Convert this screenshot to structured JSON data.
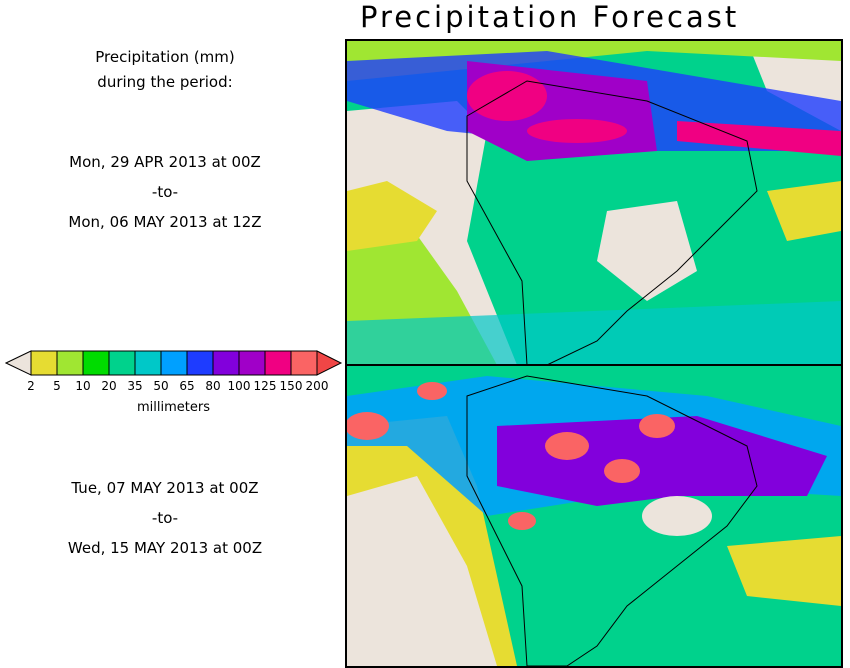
{
  "title": "Precipitation Forecast",
  "caption": {
    "line1": "Precipitation (mm)",
    "line2": "during the period:"
  },
  "period1": {
    "start": "Mon, 29 APR 2013 at 00Z",
    "sep": "-to-",
    "end": "Mon, 06 MAY 2013 at 12Z"
  },
  "period2": {
    "start": "Tue, 07 MAY 2013 at 00Z",
    "sep": "-to-",
    "end": "Wed, 15 MAY 2013 at 00Z"
  },
  "legend": {
    "units": "millimeters",
    "labels": [
      "2",
      "5",
      "10",
      "20",
      "35",
      "50",
      "65",
      "80",
      "100",
      "125",
      "150",
      "200"
    ],
    "colors": [
      "#e6dc32",
      "#a0e632",
      "#00dc00",
      "#00d28c",
      "#00c8c8",
      "#00a0ff",
      "#1e3cff",
      "#8200dc",
      "#a000c8",
      "#f00082",
      "#fa6464"
    ],
    "low_color": "#ece4dc",
    "high_color": "#f04646"
  }
}
